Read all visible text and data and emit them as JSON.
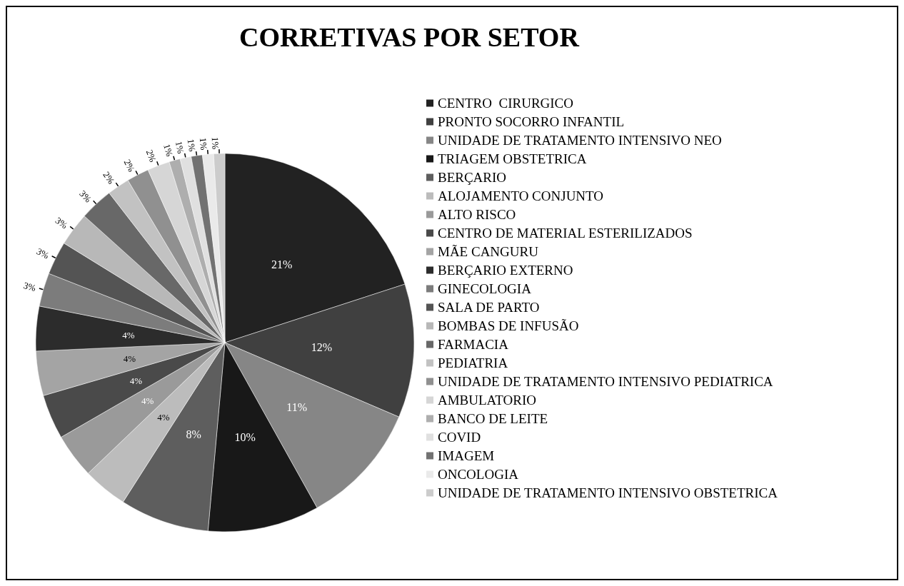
{
  "chart_data": {
    "type": "pie",
    "title": "CORRETIVAS POR SETOR",
    "categories": [
      "CENTRO  CIRURGICO",
      "PRONTO SOCORRO INFANTIL",
      "UNIDADE DE TRATAMENTO INTENSIVO NEO",
      "TRIAGEM OBSTETRICA",
      "BERÇARIO",
      "ALOJAMENTO CONJUNTO",
      "ALTO RISCO",
      "CENTRO DE MATERIAL ESTERILIZADOS",
      "MÃE CANGURU",
      "BERÇARIO EXTERNO",
      "GINECOLOGIA",
      "SALA DE PARTO",
      "BOMBAS DE INFUSÃO",
      "FARMACIA",
      "PEDIATRIA",
      "UNIDADE DE TRATAMENTO INTENSIVO PEDIATRICA",
      "AMBULATORIO",
      "BANCO DE LEITE",
      "COVID",
      "IMAGEM",
      "ONCOLOGIA",
      "UNIDADE DE TRATAMENTO INTENSIVO OBSTETRICA"
    ],
    "values": [
      21,
      12,
      11,
      10,
      8,
      4,
      4,
      4,
      4,
      4,
      3,
      3,
      3,
      3,
      2,
      2,
      2,
      1,
      1,
      1,
      1,
      1
    ],
    "value_labels": [
      "21%",
      "12%",
      "11%",
      "10%",
      "8%",
      "4%",
      "4%",
      "4%",
      "4%",
      "4%",
      "3%",
      "3%",
      "3%",
      "3%",
      "2%",
      "2%",
      "2%",
      "1%",
      "1%",
      "1%",
      "1%",
      "1%"
    ],
    "colors": [
      "#222222",
      "#404040",
      "#868686",
      "#181818",
      "#5e5e5e",
      "#bcbcbc",
      "#9a9a9a",
      "#4a4a4a",
      "#a4a4a4",
      "#2c2c2c",
      "#7c7c7c",
      "#545454",
      "#b8b8b8",
      "#686868",
      "#c2c2c2",
      "#909090",
      "#d6d6d6",
      "#aeaeae",
      "#e0e0e0",
      "#727272",
      "#eaeaea",
      "#cccccc"
    ],
    "legend": "right"
  }
}
